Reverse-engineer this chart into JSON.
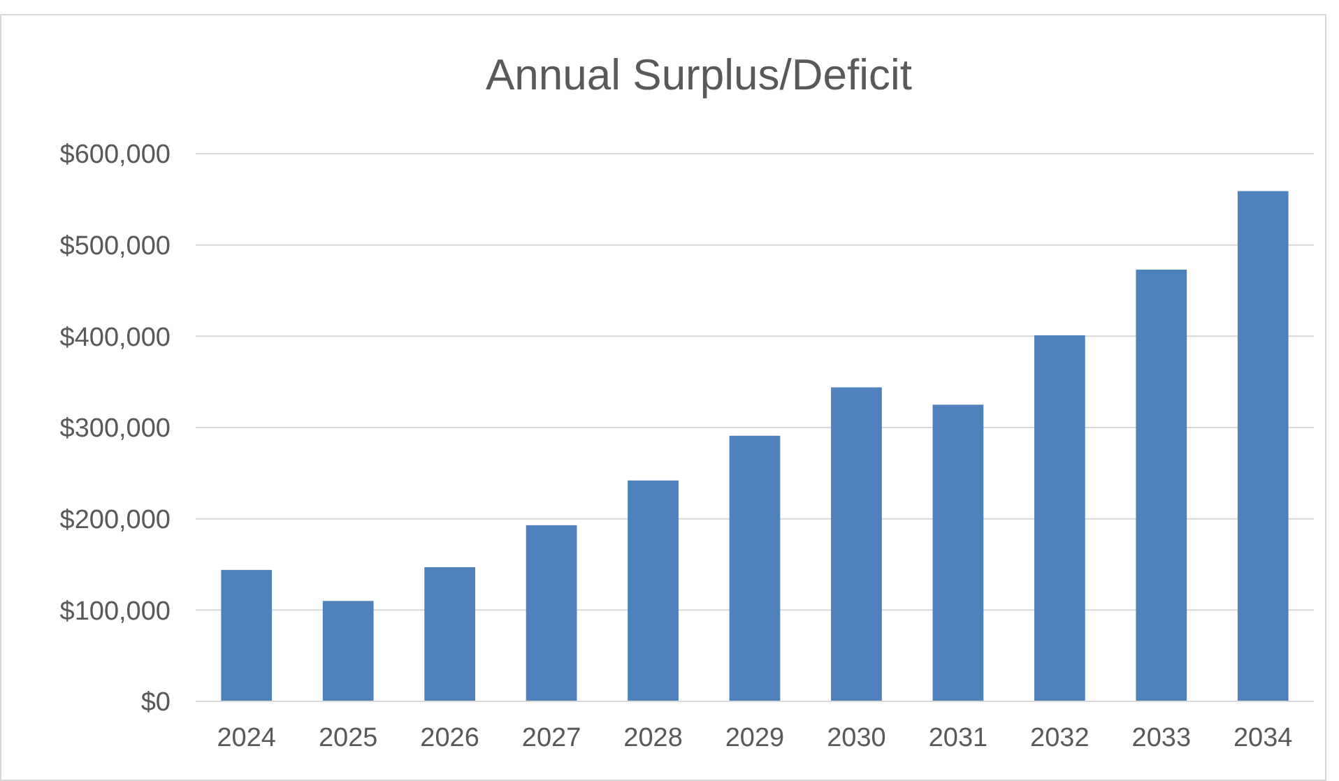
{
  "chart_data": {
    "type": "bar",
    "title": "Annual Surplus/Deficit",
    "categories": [
      "2024",
      "2025",
      "2026",
      "2027",
      "2028",
      "2029",
      "2030",
      "2031",
      "2032",
      "2033",
      "2034"
    ],
    "values": [
      144000,
      110000,
      147000,
      193000,
      242000,
      291000,
      344000,
      325000,
      401000,
      473000,
      559000
    ],
    "color": "#4f81bd",
    "ylim": [
      0,
      600000
    ],
    "yticks": [
      {
        "value": 0,
        "label": "$0"
      },
      {
        "value": 100000,
        "label": "$100,000"
      },
      {
        "value": 200000,
        "label": "$200,000"
      },
      {
        "value": 300000,
        "label": "$300,000"
      },
      {
        "value": 400000,
        "label": "$400,000"
      },
      {
        "value": 500000,
        "label": "$500,000"
      },
      {
        "value": 600000,
        "label": "$600,000"
      }
    ],
    "grid": "y"
  }
}
